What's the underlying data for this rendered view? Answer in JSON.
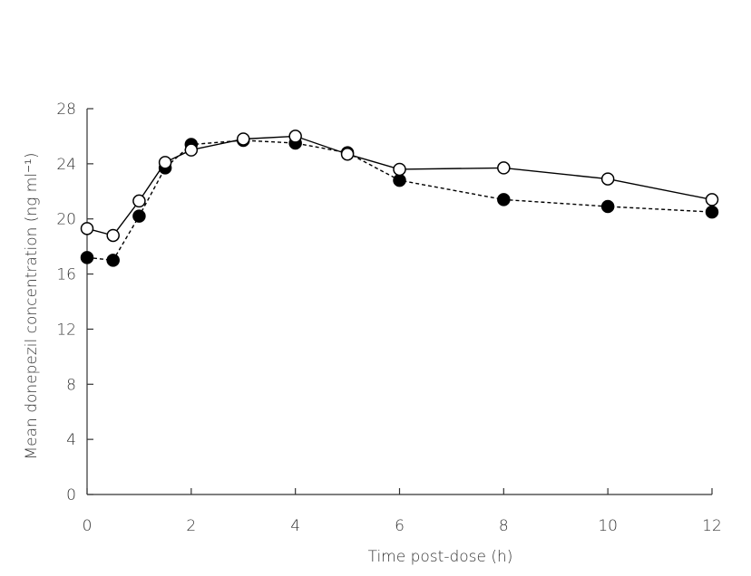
{
  "chart_data": {
    "type": "line",
    "title": "",
    "xlabel": "Time post-dose (h)",
    "ylabel": "Mean donepezil concentration (ng ml⁻¹)",
    "xlim": [
      0,
      12
    ],
    "ylim": [
      0,
      28
    ],
    "xticks": [
      0,
      2,
      4,
      6,
      8,
      10,
      12
    ],
    "xtick_labels": [
      "0",
      "2",
      "4",
      "6",
      "8",
      "10",
      "12"
    ],
    "yticks": [
      0,
      4,
      8,
      12,
      16,
      20,
      24,
      28
    ],
    "ytick_labels": [
      "0",
      "4",
      "8",
      "12",
      "16",
      "20",
      "24",
      "28"
    ],
    "grid": false,
    "legend": "none",
    "series": [
      {
        "marker": "filled-circle",
        "line_style": "dashed",
        "color": "#000000",
        "x": [
          0,
          0.5,
          1,
          1.5,
          2,
          3,
          4,
          5,
          6,
          8,
          10,
          12
        ],
        "y": [
          17.2,
          17.0,
          20.2,
          23.7,
          25.4,
          25.7,
          25.5,
          24.8,
          22.8,
          21.4,
          20.9,
          20.5
        ]
      },
      {
        "marker": "open-circle",
        "line_style": "solid",
        "color": "#000000",
        "x": [
          0,
          0.5,
          1,
          1.5,
          2,
          3,
          4,
          5,
          6,
          8,
          10,
          12
        ],
        "y": [
          19.3,
          18.8,
          21.3,
          24.1,
          25.0,
          25.8,
          26.0,
          24.7,
          23.6,
          23.7,
          22.9,
          21.4
        ]
      }
    ]
  }
}
